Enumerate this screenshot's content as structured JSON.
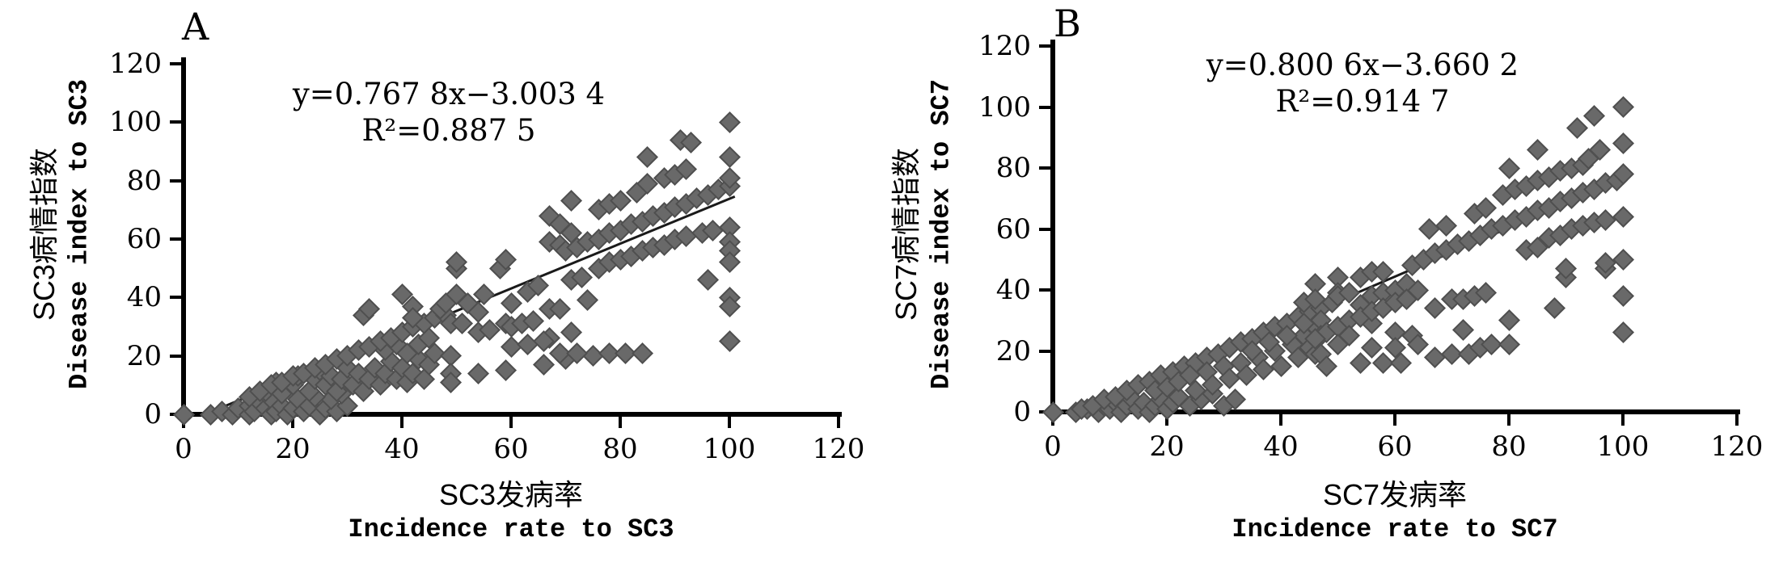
{
  "figure": {
    "background_color": "#ffffff",
    "axis_color": "#000000",
    "marker_color": "#696969",
    "marker_border_color": "#4f4f4f",
    "trendline_color": "#1a1a1a"
  },
  "chart_data": [
    {
      "type": "scatter",
      "panel_label": "A",
      "equation": "y=0.767 8x−3.003 4",
      "r_squared": "R²=0.887 5",
      "xlabel_zh": "SC3发病率",
      "xlabel_en": "Incidence rate to SC3",
      "ylabel_zh": "SC3病情指数",
      "ylabel_en": "Disease index to SC3",
      "xlim": [
        0,
        120
      ],
      "ylim": [
        0,
        120
      ],
      "x_ticks": [
        0,
        20,
        40,
        60,
        80,
        100,
        120
      ],
      "y_ticks": [
        0,
        20,
        40,
        60,
        80,
        100,
        120
      ],
      "grid": false,
      "marker": "diamond",
      "trendline": {
        "slope": 0.7678,
        "intercept": -3.0034,
        "x_start": 4,
        "x_end": 101
      },
      "points": [
        [
          0,
          0
        ],
        [
          5,
          0
        ],
        [
          7,
          1
        ],
        [
          9,
          0
        ],
        [
          10,
          2
        ],
        [
          12,
          0
        ],
        [
          12,
          3
        ],
        [
          13,
          1
        ],
        [
          14,
          4
        ],
        [
          15,
          2
        ],
        [
          16,
          0
        ],
        [
          16,
          5
        ],
        [
          17,
          1
        ],
        [
          18,
          3
        ],
        [
          19,
          0
        ],
        [
          20,
          2
        ],
        [
          21,
          5
        ],
        [
          22,
          1
        ],
        [
          23,
          3
        ],
        [
          25,
          0
        ],
        [
          26,
          2
        ],
        [
          28,
          1
        ],
        [
          30,
          3
        ],
        [
          27,
          5
        ],
        [
          24,
          6
        ],
        [
          29,
          7
        ],
        [
          15,
          8
        ],
        [
          17,
          11
        ],
        [
          18,
          7
        ],
        [
          20,
          10
        ],
        [
          21,
          13
        ],
        [
          23,
          8
        ],
        [
          24,
          12
        ],
        [
          25,
          15
        ],
        [
          26,
          10
        ],
        [
          27,
          13
        ],
        [
          28,
          8
        ],
        [
          29,
          12
        ],
        [
          30,
          16
        ],
        [
          31,
          10
        ],
        [
          32,
          14
        ],
        [
          33,
          8
        ],
        [
          34,
          12
        ],
        [
          35,
          16
        ],
        [
          36,
          10
        ],
        [
          37,
          14
        ],
        [
          38,
          18
        ],
        [
          39,
          12
        ],
        [
          40,
          16
        ],
        [
          41,
          11
        ],
        [
          42,
          14
        ],
        [
          43,
          19
        ],
        [
          44,
          12
        ],
        [
          45,
          17
        ],
        [
          46,
          21
        ],
        [
          37,
          22
        ],
        [
          39,
          24
        ],
        [
          41,
          21
        ],
        [
          43,
          24
        ],
        [
          45,
          26
        ],
        [
          12,
          6
        ],
        [
          14,
          8
        ],
        [
          16,
          10
        ],
        [
          18,
          11
        ],
        [
          20,
          13
        ],
        [
          22,
          14
        ],
        [
          24,
          16
        ],
        [
          26,
          17
        ],
        [
          28,
          19
        ],
        [
          30,
          20
        ],
        [
          32,
          22
        ],
        [
          34,
          23
        ],
        [
          36,
          25
        ],
        [
          38,
          26
        ],
        [
          40,
          28
        ],
        [
          42,
          30
        ],
        [
          44,
          31
        ],
        [
          46,
          33
        ],
        [
          48,
          34
        ],
        [
          33,
          34
        ],
        [
          34,
          36
        ],
        [
          40,
          41
        ],
        [
          42,
          37
        ],
        [
          42,
          33
        ],
        [
          47,
          36
        ],
        [
          48,
          38
        ],
        [
          49,
          31
        ],
        [
          50,
          41
        ],
        [
          49,
          20
        ],
        [
          49,
          14
        ],
        [
          49,
          11
        ],
        [
          50,
          50
        ],
        [
          51,
          31
        ],
        [
          52,
          38
        ],
        [
          54,
          35
        ],
        [
          54,
          28
        ],
        [
          54,
          14
        ],
        [
          55,
          41
        ],
        [
          56,
          29
        ],
        [
          58,
          50
        ],
        [
          59,
          31
        ],
        [
          59,
          15
        ],
        [
          60,
          38
        ],
        [
          60,
          30
        ],
        [
          60,
          23
        ],
        [
          62,
          31
        ],
        [
          63,
          42
        ],
        [
          64,
          32
        ],
        [
          65,
          44
        ],
        [
          66,
          17
        ],
        [
          67,
          36
        ],
        [
          67,
          26
        ],
        [
          69,
          36
        ],
        [
          70,
          19
        ],
        [
          71,
          46
        ],
        [
          71,
          28
        ],
        [
          73,
          47
        ],
        [
          74,
          39
        ],
        [
          75,
          20
        ],
        [
          78,
          21
        ],
        [
          81,
          21
        ],
        [
          84,
          21
        ],
        [
          69,
          21
        ],
        [
          72,
          21
        ],
        [
          66,
          25
        ],
        [
          63,
          24
        ],
        [
          50,
          52
        ],
        [
          59,
          53
        ],
        [
          67,
          68
        ],
        [
          71,
          73
        ],
        [
          69,
          65
        ],
        [
          71,
          62
        ],
        [
          67,
          59
        ],
        [
          69,
          58
        ],
        [
          76,
          70
        ],
        [
          78,
          72
        ],
        [
          80,
          73
        ],
        [
          83,
          76
        ],
        [
          85,
          88
        ],
        [
          91,
          94
        ],
        [
          93,
          93
        ],
        [
          85,
          79
        ],
        [
          88,
          81
        ],
        [
          90,
          82
        ],
        [
          92,
          84
        ],
        [
          70,
          56
        ],
        [
          72,
          57
        ],
        [
          74,
          59
        ],
        [
          76,
          60
        ],
        [
          78,
          62
        ],
        [
          80,
          63
        ],
        [
          82,
          65
        ],
        [
          84,
          66
        ],
        [
          86,
          68
        ],
        [
          88,
          69
        ],
        [
          90,
          71
        ],
        [
          92,
          72
        ],
        [
          94,
          74
        ],
        [
          96,
          75
        ],
        [
          98,
          77
        ],
        [
          100,
          78
        ],
        [
          76,
          50
        ],
        [
          78,
          52
        ],
        [
          80,
          53
        ],
        [
          82,
          54
        ],
        [
          84,
          56
        ],
        [
          86,
          57
        ],
        [
          88,
          58
        ],
        [
          90,
          60
        ],
        [
          92,
          61
        ],
        [
          95,
          62
        ],
        [
          97,
          63
        ],
        [
          100,
          64
        ],
        [
          100,
          100
        ],
        [
          100,
          88
        ],
        [
          100,
          81
        ],
        [
          100,
          59
        ],
        [
          100,
          56
        ],
        [
          100,
          52
        ],
        [
          100,
          40
        ],
        [
          100,
          37
        ],
        [
          100,
          25
        ],
        [
          96,
          46
        ]
      ]
    },
    {
      "type": "scatter",
      "panel_label": "B",
      "equation": "y=0.800 6x−3.660 2",
      "r_squared": "R²=0.914 7",
      "xlabel_zh": "SC7发病率",
      "xlabel_en": "Incidence rate to SC7",
      "ylabel_zh": "SC7病情指数",
      "ylabel_en": "Disease index to SC7",
      "xlim": [
        0,
        120
      ],
      "ylim": [
        0,
        120
      ],
      "x_ticks": [
        0,
        20,
        40,
        60,
        80,
        100,
        120
      ],
      "y_ticks": [
        0,
        20,
        40,
        60,
        80,
        100,
        120
      ],
      "grid": false,
      "marker": "diamond",
      "trendline": {
        "slope": 0.8006,
        "intercept": -3.6602,
        "x_start": 4.6,
        "x_end": 101
      },
      "points": [
        [
          0,
          0
        ],
        [
          4,
          0
        ],
        [
          6,
          1
        ],
        [
          8,
          0
        ],
        [
          9,
          2
        ],
        [
          10,
          1
        ],
        [
          11,
          3
        ],
        [
          12,
          0
        ],
        [
          13,
          2
        ],
        [
          14,
          4
        ],
        [
          15,
          1
        ],
        [
          16,
          3
        ],
        [
          17,
          0
        ],
        [
          18,
          2
        ],
        [
          19,
          4
        ],
        [
          20,
          1
        ],
        [
          21,
          3
        ],
        [
          22,
          5
        ],
        [
          24,
          2
        ],
        [
          26,
          4
        ],
        [
          28,
          6
        ],
        [
          30,
          2
        ],
        [
          32,
          4
        ],
        [
          5,
          1
        ],
        [
          7,
          2
        ],
        [
          9,
          4
        ],
        [
          11,
          5
        ],
        [
          13,
          7
        ],
        [
          15,
          9
        ],
        [
          17,
          10
        ],
        [
          19,
          12
        ],
        [
          21,
          13
        ],
        [
          23,
          15
        ],
        [
          25,
          16
        ],
        [
          27,
          18
        ],
        [
          29,
          19
        ],
        [
          31,
          21
        ],
        [
          33,
          23
        ],
        [
          35,
          24
        ],
        [
          37,
          26
        ],
        [
          39,
          28
        ],
        [
          41,
          29
        ],
        [
          43,
          31
        ],
        [
          45,
          33
        ],
        [
          47,
          34
        ],
        [
          49,
          36
        ],
        [
          18,
          7
        ],
        [
          20,
          8
        ],
        [
          22,
          10
        ],
        [
          24,
          12
        ],
        [
          25,
          7
        ],
        [
          27,
          13
        ],
        [
          28,
          9
        ],
        [
          30,
          15
        ],
        [
          31,
          11
        ],
        [
          33,
          16
        ],
        [
          34,
          12
        ],
        [
          36,
          18
        ],
        [
          37,
          14
        ],
        [
          39,
          20
        ],
        [
          40,
          15
        ],
        [
          42,
          22
        ],
        [
          43,
          18
        ],
        [
          44,
          25
        ],
        [
          45,
          21
        ],
        [
          46,
          28
        ],
        [
          46,
          19
        ],
        [
          35,
          20
        ],
        [
          38,
          23
        ],
        [
          41,
          25
        ],
        [
          44,
          29
        ],
        [
          46,
          42
        ],
        [
          50,
          44
        ],
        [
          50,
          39
        ],
        [
          54,
          44
        ],
        [
          56,
          46
        ],
        [
          58,
          46
        ],
        [
          44,
          36
        ],
        [
          46,
          37
        ],
        [
          50,
          38
        ],
        [
          52,
          39
        ],
        [
          54,
          35
        ],
        [
          56,
          38
        ],
        [
          58,
          39
        ],
        [
          60,
          40
        ],
        [
          62,
          42
        ],
        [
          64,
          40
        ],
        [
          47,
          30
        ],
        [
          47,
          25
        ],
        [
          47,
          19
        ],
        [
          48,
          15
        ],
        [
          54,
          16
        ],
        [
          56,
          29
        ],
        [
          58,
          16
        ],
        [
          60,
          26
        ],
        [
          61,
          16
        ],
        [
          63,
          25
        ],
        [
          56,
          21
        ],
        [
          60,
          21
        ],
        [
          64,
          22
        ],
        [
          48,
          26
        ],
        [
          50,
          28
        ],
        [
          52,
          30
        ],
        [
          54,
          31
        ],
        [
          56,
          33
        ],
        [
          58,
          34
        ],
        [
          60,
          36
        ],
        [
          62,
          37
        ],
        [
          50,
          22
        ],
        [
          52,
          25
        ],
        [
          46,
          24
        ],
        [
          67,
          34
        ],
        [
          70,
          37
        ],
        [
          72,
          37
        ],
        [
          74,
          38
        ],
        [
          76,
          39
        ],
        [
          67,
          18
        ],
        [
          70,
          19
        ],
        [
          73,
          19
        ],
        [
          75,
          21
        ],
        [
          77,
          22
        ],
        [
          80,
          22
        ],
        [
          72,
          27
        ],
        [
          80,
          30
        ],
        [
          88,
          34
        ],
        [
          90,
          44
        ],
        [
          97,
          47
        ],
        [
          100,
          38
        ],
        [
          100,
          26
        ],
        [
          90,
          47
        ],
        [
          97,
          49
        ],
        [
          100,
          50
        ],
        [
          66,
          60
        ],
        [
          69,
          61
        ],
        [
          74,
          65
        ],
        [
          76,
          67
        ],
        [
          79,
          71
        ],
        [
          81,
          73
        ],
        [
          83,
          74
        ],
        [
          85,
          76
        ],
        [
          87,
          77
        ],
        [
          89,
          79
        ],
        [
          91,
          80
        ],
        [
          93,
          81
        ],
        [
          85,
          86
        ],
        [
          80,
          80
        ],
        [
          92,
          93
        ],
        [
          95,
          97
        ],
        [
          100,
          100
        ],
        [
          100,
          88
        ],
        [
          96,
          86
        ],
        [
          94,
          83
        ],
        [
          63,
          48
        ],
        [
          65,
          50
        ],
        [
          67,
          52
        ],
        [
          69,
          53
        ],
        [
          71,
          55
        ],
        [
          73,
          56
        ],
        [
          75,
          58
        ],
        [
          77,
          60
        ],
        [
          79,
          61
        ],
        [
          81,
          63
        ],
        [
          83,
          64
        ],
        [
          85,
          66
        ],
        [
          87,
          67
        ],
        [
          89,
          69
        ],
        [
          91,
          70
        ],
        [
          93,
          72
        ],
        [
          95,
          73
        ],
        [
          97,
          75
        ],
        [
          99,
          76
        ],
        [
          100,
          78
        ],
        [
          83,
          53
        ],
        [
          85,
          54
        ],
        [
          87,
          57
        ],
        [
          89,
          58
        ],
        [
          91,
          60
        ],
        [
          93,
          61
        ],
        [
          95,
          62
        ],
        [
          97,
          63
        ],
        [
          100,
          64
        ]
      ]
    }
  ]
}
